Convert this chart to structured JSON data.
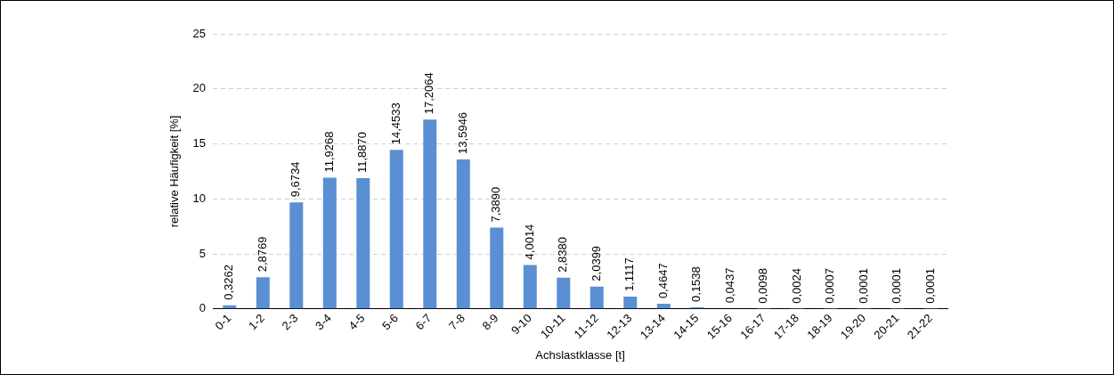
{
  "chart_data": {
    "type": "bar",
    "xlabel": "Achslastklasse [t]",
    "ylabel": "relative Häufigkeit [%]",
    "categories": [
      "0-1",
      "1-2",
      "2-3",
      "3-4",
      "4-5",
      "5-6",
      "6-7",
      "7-8",
      "8-9",
      "9-10",
      "10-11",
      "11-12",
      "12-13",
      "13-14",
      "14-15",
      "15-16",
      "16-17",
      "17-18",
      "18-19",
      "19-20",
      "20-21",
      "21-22"
    ],
    "values": [
      0.3262,
      2.8769,
      9.6734,
      11.9268,
      11.887,
      14.4533,
      17.2064,
      13.5946,
      7.389,
      4.0014,
      2.838,
      2.0399,
      1.1117,
      0.4647,
      0.1538,
      0.0437,
      0.0098,
      0.0024,
      0.0007,
      0.0001,
      0.0001,
      0.0001
    ],
    "value_labels": [
      "0,3262",
      "2,8769",
      "9,6734",
      "11,9268",
      "11,8870",
      "14,4533",
      "17,2064",
      "13,5946",
      "7,3890",
      "4,0014",
      "2,8380",
      "2,0399",
      "1,1117",
      "0,4647",
      "0,1538",
      "0,0437",
      "0,0098",
      "0,0024",
      "0,0007",
      "0,0001",
      "0,0001",
      "0,0001"
    ],
    "color": "#5b8fd4",
    "ylim": [
      0,
      25
    ],
    "yticks": [
      0,
      5,
      10,
      15,
      20,
      25
    ],
    "grid": "y",
    "legend": false
  }
}
